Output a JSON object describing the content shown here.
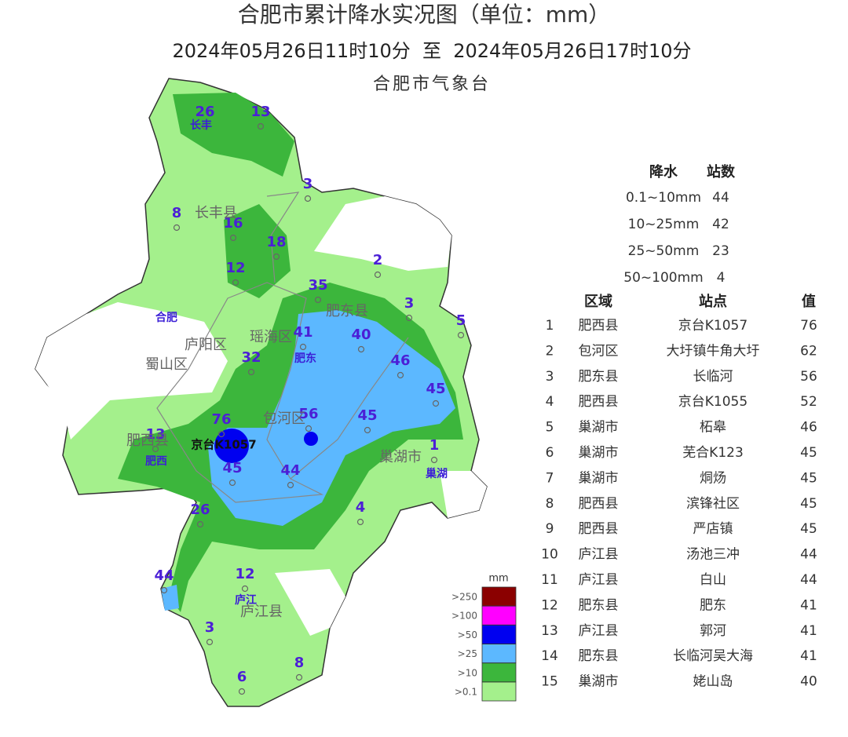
{
  "header": {
    "title": "合肥市累计降水实况图（单位：mm）",
    "subtitle": "2024年05月26日11时10分  至  2024年05月26日17时10分",
    "agency": "合肥市气象台"
  },
  "map": {
    "districts": [
      "长丰县",
      "庐阳区",
      "瑶海区",
      "蜀山区",
      "包河区",
      "肥东县",
      "肥西县",
      "巢湖市",
      "庐江县"
    ],
    "cities": [
      "长丰",
      "合肥",
      "肥东",
      "肥西",
      "巢湖",
      "庐江"
    ],
    "station_label": "京台K1057",
    "values": [
      26,
      13,
      3,
      8,
      16,
      18,
      2,
      12,
      35,
      3,
      5,
      41,
      40,
      32,
      46,
      45,
      76,
      56,
      45,
      13,
      1,
      45,
      44,
      4,
      26,
      12,
      44,
      3,
      8,
      6
    ]
  },
  "legend": {
    "unit": "mm",
    "items": [
      {
        "label": ">250",
        "color": "#8b0000"
      },
      {
        "label": ">100",
        "color": "#ff00ff"
      },
      {
        "label": ">50",
        "color": "#0000f0"
      },
      {
        "label": ">25",
        "color": "#5cb8ff"
      },
      {
        "label": ">10",
        "color": "#3cb63c"
      },
      {
        "label": ">0.1",
        "color": "#a4f08c"
      }
    ]
  },
  "summary": {
    "headers": [
      "降水",
      "站数"
    ],
    "rows": [
      [
        "0.1~10mm",
        44
      ],
      [
        "10~25mm",
        42
      ],
      [
        "25~50mm",
        23
      ],
      [
        "50~100mm",
        4
      ]
    ]
  },
  "ranking": {
    "headers": [
      "区域",
      "站点",
      "值"
    ],
    "rows": [
      [
        1,
        "肥西县",
        "京台K1057",
        76
      ],
      [
        2,
        "包河区",
        "大圩镇牛角大圩",
        62
      ],
      [
        3,
        "肥东县",
        "长临河",
        56
      ],
      [
        4,
        "肥西县",
        "京台K1055",
        52
      ],
      [
        5,
        "巢湖市",
        "柘皋",
        46
      ],
      [
        6,
        "巢湖市",
        "芜合K123",
        45
      ],
      [
        7,
        "巢湖市",
        "烔炀",
        45
      ],
      [
        8,
        "肥西县",
        "滨锋社区",
        45
      ],
      [
        9,
        "肥西县",
        "严店镇",
        45
      ],
      [
        10,
        "庐江县",
        "汤池三冲",
        44
      ],
      [
        11,
        "庐江县",
        "白山",
        44
      ],
      [
        12,
        "肥东县",
        "肥东",
        41
      ],
      [
        13,
        "庐江县",
        "郭河",
        41
      ],
      [
        14,
        "肥东县",
        "长临河吴大海",
        41
      ],
      [
        15,
        "巢湖市",
        "姥山岛",
        40
      ]
    ]
  }
}
